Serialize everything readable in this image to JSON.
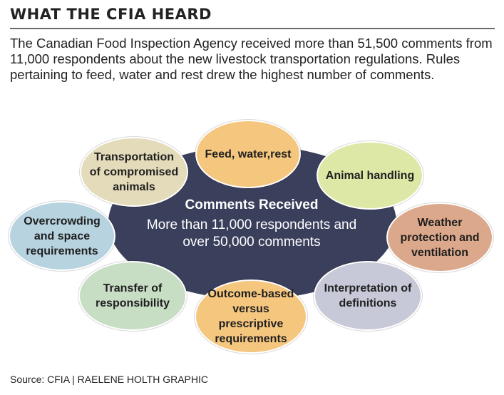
{
  "title": "WHAT THE CFIA HEARD",
  "intro": "The Canadian Food Inspection Agency received more than 51,500 comments from 11,000 respondents about the new livestock transportation regulations. Rules pertaining to feed, water and rest drew the highest number of comments.",
  "hub": {
    "heading": "Comments Received",
    "body": "More than 11,000 respondents and over 50,000 comments"
  },
  "nodes": [
    {
      "label": "Feed, water,rest",
      "color": "#f5c67e"
    },
    {
      "label": "Animal handling",
      "color": "#dde8a6"
    },
    {
      "label": "Weather protection and ventilation",
      "color": "#dca88b"
    },
    {
      "label": "Interpretation of definitions",
      "color": "#c7c9d8"
    },
    {
      "label": "Outcome-based versus prescriptive requirements",
      "color": "#f5c67e"
    },
    {
      "label": "Transfer of responsibility",
      "color": "#c7ddc4"
    },
    {
      "label": "Overcrowding and space requirements",
      "color": "#b7d3df"
    },
    {
      "label": "Transportation of compromised animals",
      "color": "#e3dbb9"
    }
  ],
  "hub_color": "#3a3f5c",
  "source": "Source: CFIA | RAELENE HOLTH GRAPHIC"
}
